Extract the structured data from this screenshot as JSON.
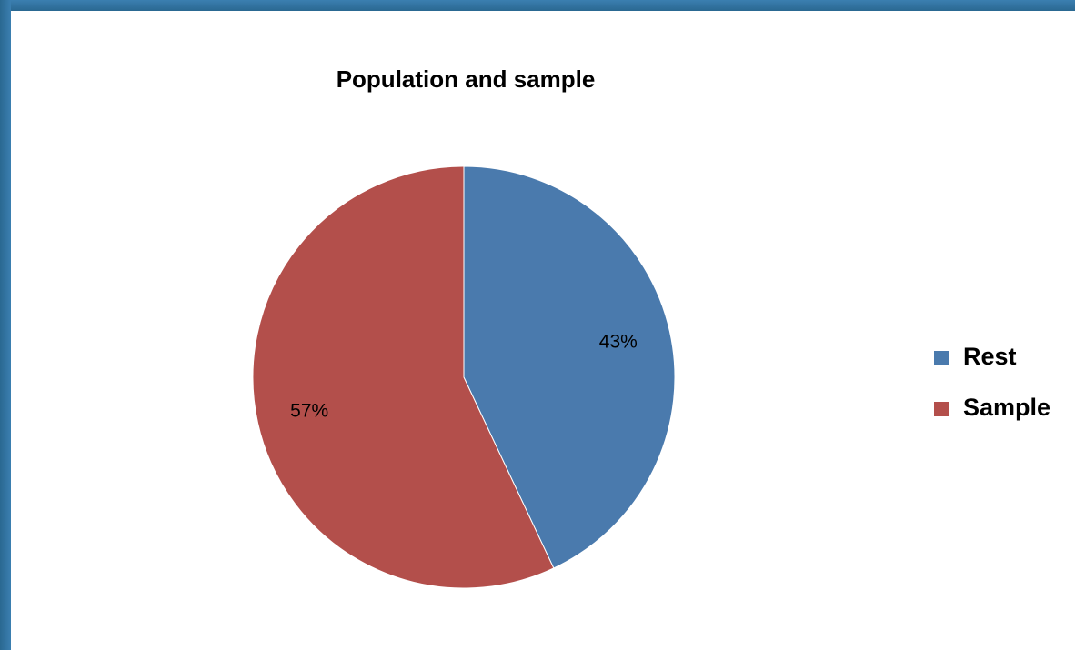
{
  "chart_data": {
    "type": "pie",
    "title": "Population and sample",
    "slices": [
      {
        "label": "Rest",
        "value": 43,
        "display": "43%",
        "color": "#4a7aad"
      },
      {
        "label": "Sample",
        "value": 57,
        "display": "57%",
        "color": "#b34f4b"
      }
    ],
    "legend_position": "right"
  }
}
